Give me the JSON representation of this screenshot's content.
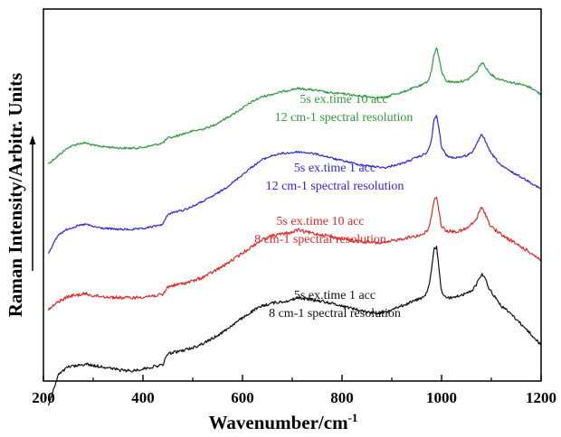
{
  "chart_data": {
    "type": "line",
    "xlabel": "Wavenumber/cm",
    "xlabel_sup": "-1",
    "ylabel": "Raman Intensity/Arbitr. Units",
    "xlim": [
      200,
      1200
    ],
    "x_ticks": [
      200,
      400,
      600,
      800,
      1000,
      1200
    ],
    "y_ticks_shown": false,
    "grid": false,
    "legend": "none (text annotations beside each curve)",
    "annotations": [
      {
        "lines": [
          "5s ex.time 10 acc",
          "12 cm-1 spectral resolution"
        ],
        "color": "#2e9a3a"
      },
      {
        "lines": [
          "5s ex.time 1 acc",
          "12 cm-1 spectral resolution"
        ],
        "color": "#2a2ad8"
      },
      {
        "lines": [
          "5s ex.time 10 acc",
          "8 cm-1 spectral resolution"
        ],
        "color": "#e02828"
      },
      {
        "lines": [
          "5s ex.time 1 acc",
          "8 cm-1 spectral resolution"
        ],
        "color": "#111111"
      }
    ],
    "series": [
      {
        "color": "#2e9a3a",
        "noise": 0.6,
        "x": [
          210,
          230,
          250,
          270,
          285,
          300,
          320,
          340,
          360,
          380,
          400,
          420,
          440,
          450,
          460,
          480,
          500,
          520,
          540,
          560,
          580,
          600,
          620,
          640,
          660,
          680,
          700,
          710,
          730,
          750,
          770,
          790,
          810,
          830,
          850,
          870,
          890,
          900,
          920,
          940,
          960,
          970,
          975,
          980,
          985,
          990,
          995,
          1000,
          1010,
          1020,
          1030,
          1040,
          1050,
          1060,
          1070,
          1075,
          1080,
          1085,
          1090,
          1095,
          1100,
          1110,
          1120,
          1140,
          1160,
          1180,
          1200
        ],
        "y": [
          5.35,
          5.55,
          5.75,
          5.84,
          5.86,
          5.8,
          5.77,
          5.75,
          5.73,
          5.73,
          5.75,
          5.8,
          5.86,
          5.98,
          6.0,
          6.08,
          6.15,
          6.2,
          6.28,
          6.42,
          6.56,
          6.72,
          6.88,
          7.0,
          7.06,
          7.12,
          7.18,
          7.2,
          7.18,
          7.15,
          7.1,
          7.08,
          7.06,
          7.02,
          7.0,
          6.98,
          6.98,
          7.05,
          7.1,
          7.2,
          7.28,
          7.35,
          7.45,
          7.65,
          8.05,
          8.2,
          7.95,
          7.6,
          7.38,
          7.36,
          7.36,
          7.38,
          7.4,
          7.5,
          7.6,
          7.72,
          7.82,
          7.8,
          7.7,
          7.6,
          7.55,
          7.45,
          7.42,
          7.35,
          7.3,
          7.22,
          7.05
        ]
      },
      {
        "color": "#2a2ad8",
        "noise": 0.55,
        "x": [
          210,
          230,
          250,
          270,
          285,
          300,
          320,
          340,
          360,
          380,
          400,
          420,
          440,
          450,
          460,
          480,
          500,
          520,
          540,
          560,
          580,
          600,
          620,
          640,
          660,
          680,
          700,
          710,
          730,
          750,
          770,
          790,
          810,
          830,
          850,
          870,
          890,
          900,
          920,
          940,
          960,
          970,
          975,
          980,
          985,
          990,
          995,
          1000,
          1010,
          1020,
          1030,
          1040,
          1050,
          1060,
          1070,
          1075,
          1080,
          1085,
          1090,
          1095,
          1100,
          1110,
          1120,
          1140,
          1160,
          1180,
          1200
        ],
        "y": [
          3.15,
          3.6,
          3.75,
          3.82,
          3.86,
          3.8,
          3.76,
          3.74,
          3.73,
          3.73,
          3.75,
          3.8,
          3.86,
          4.1,
          4.15,
          4.2,
          4.3,
          4.42,
          4.55,
          4.7,
          4.88,
          5.08,
          5.28,
          5.45,
          5.55,
          5.6,
          5.62,
          5.64,
          5.62,
          5.58,
          5.52,
          5.45,
          5.4,
          5.34,
          5.3,
          5.27,
          5.25,
          5.3,
          5.35,
          5.45,
          5.55,
          5.62,
          5.72,
          5.95,
          6.45,
          6.52,
          6.2,
          5.75,
          5.55,
          5.5,
          5.5,
          5.52,
          5.55,
          5.62,
          5.8,
          5.95,
          6.05,
          6.0,
          5.85,
          5.7,
          5.6,
          5.45,
          5.3,
          5.15,
          5.02,
          4.88,
          4.72
        ]
      },
      {
        "color": "#e02828",
        "noise": 0.9,
        "x": [
          210,
          230,
          250,
          270,
          285,
          300,
          320,
          340,
          360,
          380,
          400,
          420,
          440,
          450,
          460,
          480,
          500,
          520,
          540,
          560,
          580,
          600,
          620,
          640,
          660,
          680,
          700,
          710,
          730,
          750,
          770,
          790,
          810,
          830,
          850,
          870,
          890,
          900,
          920,
          940,
          960,
          970,
          975,
          980,
          985,
          990,
          995,
          1000,
          1010,
          1020,
          1030,
          1040,
          1050,
          1060,
          1070,
          1075,
          1080,
          1085,
          1090,
          1095,
          1100,
          1110,
          1120,
          1140,
          1160,
          1180,
          1200
        ],
        "y": [
          1.75,
          1.95,
          2.08,
          2.12,
          2.15,
          2.1,
          2.08,
          2.06,
          2.05,
          2.05,
          2.07,
          2.1,
          2.12,
          2.32,
          2.35,
          2.4,
          2.46,
          2.55,
          2.68,
          2.82,
          2.98,
          3.15,
          3.32,
          3.48,
          3.58,
          3.62,
          3.66,
          3.72,
          3.66,
          3.62,
          3.58,
          3.52,
          3.48,
          3.44,
          3.42,
          3.4,
          3.4,
          3.45,
          3.5,
          3.55,
          3.6,
          3.68,
          3.8,
          4.05,
          4.48,
          4.55,
          4.15,
          3.8,
          3.7,
          3.68,
          3.68,
          3.7,
          3.75,
          3.85,
          3.98,
          4.15,
          4.25,
          4.2,
          4.05,
          3.9,
          3.8,
          3.7,
          3.6,
          3.45,
          3.3,
          3.15,
          2.98
        ]
      },
      {
        "color": "#111111",
        "noise": 0.8,
        "x": [
          210,
          230,
          250,
          270,
          285,
          300,
          320,
          340,
          360,
          380,
          400,
          420,
          440,
          450,
          460,
          480,
          500,
          520,
          540,
          560,
          580,
          600,
          620,
          640,
          660,
          680,
          700,
          710,
          730,
          750,
          770,
          790,
          810,
          830,
          850,
          870,
          890,
          900,
          920,
          940,
          960,
          970,
          975,
          980,
          985,
          990,
          995,
          1000,
          1010,
          1020,
          1030,
          1040,
          1050,
          1060,
          1070,
          1075,
          1080,
          1085,
          1090,
          1095,
          1100,
          1110,
          1120,
          1140,
          1160,
          1180,
          1200
        ],
        "y": [
          -0.6,
          0.15,
          0.35,
          0.38,
          0.42,
          0.38,
          0.35,
          0.3,
          0.26,
          0.25,
          0.3,
          0.35,
          0.4,
          0.68,
          0.7,
          0.75,
          0.82,
          0.92,
          1.05,
          1.2,
          1.38,
          1.55,
          1.72,
          1.85,
          1.92,
          1.95,
          2.0,
          2.05,
          2.02,
          1.98,
          1.94,
          1.88,
          1.82,
          1.76,
          1.7,
          1.68,
          1.7,
          1.78,
          1.85,
          1.95,
          2.05,
          2.15,
          2.35,
          2.75,
          3.25,
          3.3,
          2.75,
          2.2,
          2.05,
          2.05,
          2.08,
          2.12,
          2.15,
          2.22,
          2.38,
          2.52,
          2.62,
          2.6,
          2.45,
          2.3,
          2.2,
          2.02,
          1.85,
          1.65,
          1.4,
          1.15,
          0.88
        ]
      }
    ]
  }
}
